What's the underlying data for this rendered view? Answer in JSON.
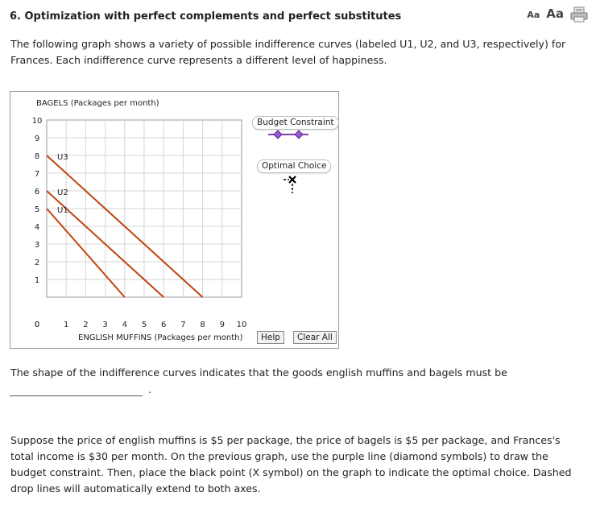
{
  "header": {
    "title": "6. Optimization with perfect complements and perfect substitutes",
    "font_small_label": "Aa",
    "font_large_label": "Aa",
    "print_icon": "printer-icon"
  },
  "intro_text": "The following graph shows a variety of possible indifference curves (labeled U1, U2, and U3, respectively) for Frances. Each indifference curve represents a different level of happiness.",
  "graph": {
    "legend": {
      "budget_label": "Budget Constraint",
      "budget_color": "#7b3fb0",
      "optimal_label": "Optimal Choice",
      "optimal_color": "#000000"
    },
    "help_label": "Help",
    "clear_label": "Clear All"
  },
  "chart_data": {
    "type": "line",
    "xlabel": "ENGLISH MUFFINS (Packages per month)",
    "ylabel": "BAGELS (Packages per month)",
    "xlim": [
      0,
      10
    ],
    "ylim": [
      0,
      10
    ],
    "x_ticks": [
      "0",
      "1",
      "2",
      "3",
      "4",
      "5",
      "6",
      "7",
      "8",
      "9",
      "10"
    ],
    "y_ticks": [
      "0",
      "1",
      "2",
      "3",
      "4",
      "5",
      "6",
      "7",
      "8",
      "9",
      "10"
    ],
    "grid": true,
    "line_color": "#c0440e",
    "series": [
      {
        "name": "U3",
        "x": [
          0,
          8
        ],
        "y": [
          8,
          0
        ]
      },
      {
        "name": "U2",
        "x": [
          0,
          6
        ],
        "y": [
          6,
          0
        ]
      },
      {
        "name": "U1",
        "x": [
          0,
          4
        ],
        "y": [
          5,
          0
        ]
      }
    ]
  },
  "question_text": "The shape of the indifference curves indicates that the goods english muffins and bagels must be",
  "answer_period": ".",
  "instructions_text": "Suppose the price of english muffins is $5 per package, the price of bagels is $5 per package, and Frances's total income is $30 per month. On the previous graph, use the purple line (diamond symbols) to draw the budget constraint. Then, place the black point (X symbol) on the graph to indicate the optimal choice. Dashed drop lines will automatically extend to both axes."
}
